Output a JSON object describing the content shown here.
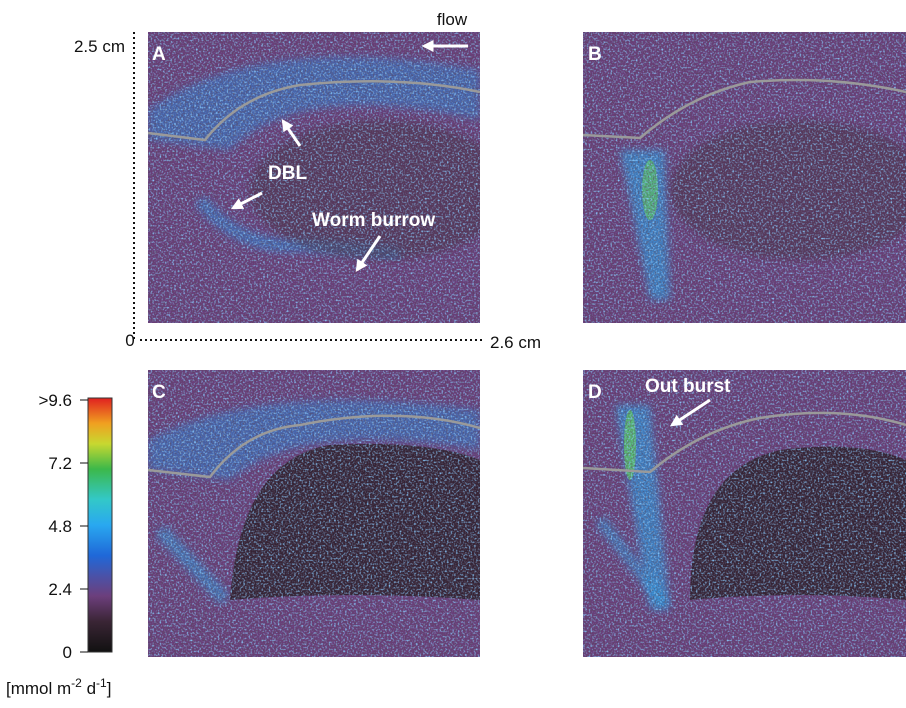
{
  "panels": [
    {
      "label": "A"
    },
    {
      "label": "B"
    },
    {
      "label": "C"
    },
    {
      "label": "D"
    }
  ],
  "scale": {
    "top": "2.5 cm",
    "origin": "0",
    "right": "2.6 cm",
    "flow": "flow"
  },
  "annotations": {
    "dbl": "DBL",
    "burrow": "Worm burrow",
    "outburst": "Out burst"
  },
  "colorbar": {
    "ticks": [
      "0",
      "2.4",
      "4.8",
      "7.2",
      ">9.6"
    ],
    "unit": {
      "open": "[mmol m",
      "exp1": "-2",
      "mid": " d",
      "exp2": "-1",
      "close": "]"
    }
  }
}
